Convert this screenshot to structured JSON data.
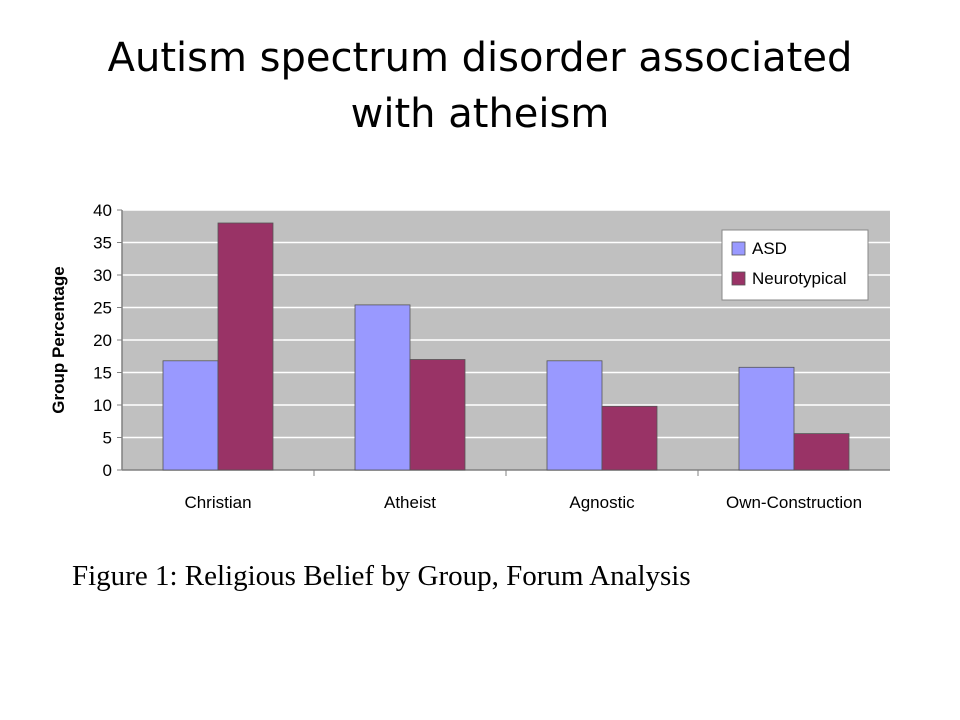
{
  "slide": {
    "title_line1": "Autism spectrum disorder associated",
    "title_line2": "with atheism"
  },
  "caption": "Figure 1: Religious Belief by Group, Forum Analysis",
  "colors": {
    "plot_bg": "#c0c0c0",
    "asd": "#9999ff",
    "neurotypical": "#993366"
  },
  "chart_data": {
    "type": "bar",
    "categories": [
      "Christian",
      "Atheist",
      "Agnostic",
      "Own-Construction"
    ],
    "series": [
      {
        "name": "ASD",
        "values": [
          16.8,
          25.4,
          16.8,
          15.8
        ]
      },
      {
        "name": "Neurotypical",
        "values": [
          38,
          17,
          9.8,
          5.6
        ]
      }
    ],
    "title": "",
    "xlabel": "",
    "ylabel": "Group Percentage",
    "ylim": [
      0,
      40
    ],
    "yticks": [
      0,
      5,
      10,
      15,
      20,
      25,
      30,
      35,
      40
    ],
    "grid": true,
    "legend": "top-right"
  }
}
